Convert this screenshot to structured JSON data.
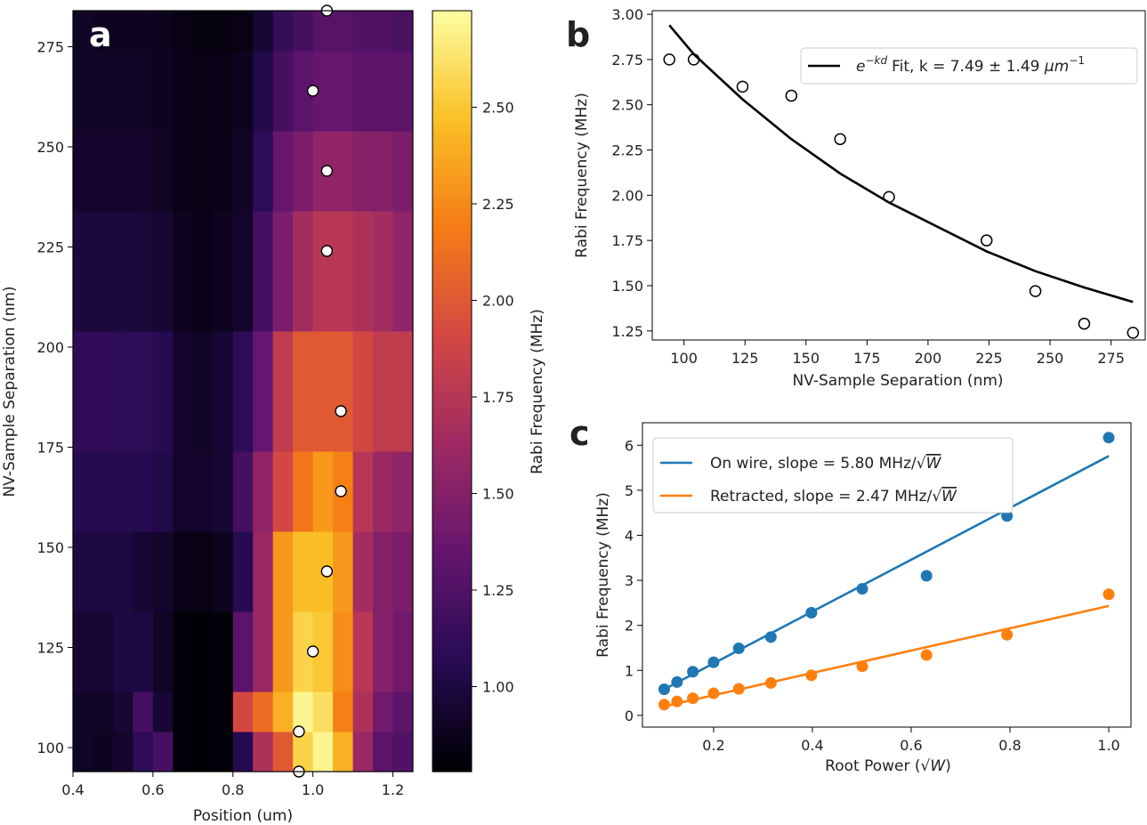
{
  "chart_data": [
    {
      "panel": "a",
      "type": "heatmap",
      "xlabel": "Position (um)",
      "ylabel": "NV-Sample Separation (nm)",
      "colorbar_label": "Rabi Frequency (MHz)",
      "colormap": "inferno",
      "xlim": [
        0.4,
        1.25
      ],
      "ylim": [
        94,
        284
      ],
      "xticks": [
        "0.4",
        "0.6",
        "0.8",
        "1.0",
        "1.2"
      ],
      "yticks": [
        "100",
        "125",
        "150",
        "175",
        "200",
        "225",
        "250",
        "275"
      ],
      "colorbar_range": [
        0.78,
        2.75
      ],
      "colorbar_ticks": [
        "1.00",
        "1.25",
        "1.50",
        "1.75",
        "2.00",
        "2.25",
        "2.50"
      ],
      "x_bins": [
        0.4,
        0.45,
        0.5,
        0.55,
        0.6,
        0.65,
        0.7,
        0.75,
        0.8,
        0.85,
        0.9,
        0.95,
        1.0,
        1.05,
        1.1,
        1.15,
        1.2,
        1.25
      ],
      "y_bins": [
        94,
        104,
        114,
        134,
        154,
        174,
        204,
        234,
        254,
        274,
        284
      ],
      "values": [
        [
          0.9,
          0.88,
          0.92,
          1.1,
          1.2,
          0.8,
          0.79,
          0.8,
          1.05,
          1.7,
          2.0,
          2.55,
          2.7,
          2.4,
          1.6,
          1.3,
          1.25
        ],
        [
          0.9,
          0.9,
          0.95,
          1.2,
          0.95,
          0.8,
          0.79,
          0.8,
          1.9,
          2.1,
          2.4,
          2.7,
          2.6,
          2.2,
          1.7,
          1.4,
          1.3
        ],
        [
          0.95,
          0.95,
          1.0,
          1.0,
          0.9,
          0.8,
          0.79,
          0.8,
          1.3,
          1.6,
          2.3,
          2.55,
          2.5,
          2.25,
          1.75,
          1.5,
          1.4
        ],
        [
          1.0,
          1.0,
          1.0,
          0.95,
          0.92,
          0.85,
          0.84,
          0.88,
          1.05,
          1.6,
          2.3,
          2.45,
          2.45,
          2.3,
          1.65,
          1.5,
          1.45
        ],
        [
          1.05,
          1.05,
          1.05,
          1.05,
          1.02,
          0.92,
          0.92,
          0.95,
          1.2,
          1.55,
          1.9,
          2.15,
          2.3,
          2.2,
          1.75,
          1.6,
          1.55
        ],
        [
          1.1,
          1.1,
          1.08,
          1.08,
          1.05,
          0.92,
          0.9,
          0.95,
          1.1,
          1.35,
          1.8,
          2.0,
          2.0,
          2.0,
          1.9,
          1.8,
          1.8
        ],
        [
          0.98,
          0.98,
          0.98,
          0.97,
          0.95,
          0.88,
          0.85,
          0.88,
          0.92,
          1.2,
          1.45,
          1.65,
          1.75,
          1.75,
          1.7,
          1.65,
          1.55
        ],
        [
          0.92,
          0.92,
          0.92,
          0.92,
          0.9,
          0.85,
          0.84,
          0.85,
          0.9,
          1.08,
          1.35,
          1.45,
          1.55,
          1.55,
          1.5,
          1.5,
          1.45
        ],
        [
          0.9,
          0.9,
          0.9,
          0.9,
          0.88,
          0.85,
          0.84,
          0.85,
          0.88,
          1.02,
          1.2,
          1.3,
          1.35,
          1.35,
          1.3,
          1.3,
          1.3
        ],
        [
          0.9,
          0.88,
          0.88,
          0.88,
          0.87,
          0.84,
          0.82,
          0.82,
          0.84,
          0.95,
          1.12,
          1.2,
          1.28,
          1.28,
          1.25,
          1.25,
          1.22
        ]
      ],
      "points": [
        {
          "x": 0.965,
          "y": 94
        },
        {
          "x": 0.965,
          "y": 104
        },
        {
          "x": 1.0,
          "y": 124
        },
        {
          "x": 1.035,
          "y": 144
        },
        {
          "x": 1.07,
          "y": 164
        },
        {
          "x": 1.07,
          "y": 184
        },
        {
          "x": 1.035,
          "y": 224
        },
        {
          "x": 1.035,
          "y": 244
        },
        {
          "x": 1.0,
          "y": 264
        },
        {
          "x": 1.035,
          "y": 284
        }
      ]
    },
    {
      "panel": "b",
      "type": "scatter",
      "xlabel": "NV-Sample Separation (nm)",
      "ylabel": "Rabi Frequency (MHz)",
      "xlim": [
        87,
        289
      ],
      "ylim": [
        1.2,
        3.02
      ],
      "xticks": [
        "100",
        "125",
        "150",
        "175",
        "200",
        "225",
        "250",
        "275"
      ],
      "yticks": [
        "1.25",
        "1.50",
        "1.75",
        "2.00",
        "2.25",
        "2.50",
        "2.75",
        "3.00"
      ],
      "legend_location": "upper right",
      "series": [
        {
          "name": "data",
          "style": "open-circle",
          "x": [
            94,
            104,
            124,
            144,
            164,
            184,
            224,
            244,
            264,
            284
          ],
          "y": [
            2.75,
            2.75,
            2.6,
            2.55,
            2.31,
            1.99,
            1.75,
            1.47,
            1.29,
            1.24
          ]
        },
        {
          "style": "line",
          "color": "#000000",
          "x": [
            94,
            104,
            124,
            144,
            164,
            184,
            224,
            244,
            264,
            284
          ],
          "y": [
            2.94,
            2.78,
            2.53,
            2.31,
            2.12,
            1.96,
            1.69,
            1.58,
            1.49,
            1.41
          ]
        }
      ]
    },
    {
      "panel": "c",
      "type": "scatter",
      "xlabel": "Root Power",
      "xlabel_unit": "W",
      "ylabel": "Rabi Frequency (MHz)",
      "xlim": [
        0.056,
        1.045
      ],
      "ylim": [
        -0.26,
        6.5
      ],
      "xticks": [
        "0.2",
        "0.4",
        "0.6",
        "0.8",
        "1.0"
      ],
      "yticks": [
        "0",
        "1",
        "2",
        "3",
        "4",
        "5",
        "6"
      ],
      "legend_location": "upper left",
      "series": [
        {
          "name": "On wire",
          "slope": "5.80",
          "slope_unit": "MHz/",
          "color": "#1f77b4",
          "x": [
            0.1,
            0.126,
            0.158,
            0.2,
            0.251,
            0.316,
            0.398,
            0.501,
            0.631,
            0.794,
            1.0
          ],
          "y": [
            0.58,
            0.74,
            0.97,
            1.18,
            1.49,
            1.74,
            2.28,
            2.81,
            3.1,
            4.43,
            6.17
          ],
          "fit_y": [
            0.58,
            5.76
          ]
        },
        {
          "name": "Retracted",
          "slope": "2.47",
          "slope_unit": "MHz/",
          "color": "#ff7f0e",
          "x": [
            0.1,
            0.126,
            0.158,
            0.2,
            0.251,
            0.316,
            0.398,
            0.501,
            0.631,
            0.794,
            1.0
          ],
          "y": [
            0.24,
            0.31,
            0.38,
            0.49,
            0.59,
            0.72,
            0.89,
            1.09,
            1.34,
            1.79,
            2.69
          ],
          "fit_y": [
            0.2,
            2.43
          ]
        }
      ]
    }
  ],
  "labels": {
    "panel_a": "a",
    "panel_b": "b",
    "panel_c": "c",
    "legend_b_prefix": "e",
    "legend_b_exponent": "−kd",
    "legend_b_text": "Fit, k = 7.49 ± 1.49 ",
    "legend_b_unit": "μm",
    "legend_b_unit_exp": "−1",
    "legend_c_slope_label": "slope ="
  }
}
